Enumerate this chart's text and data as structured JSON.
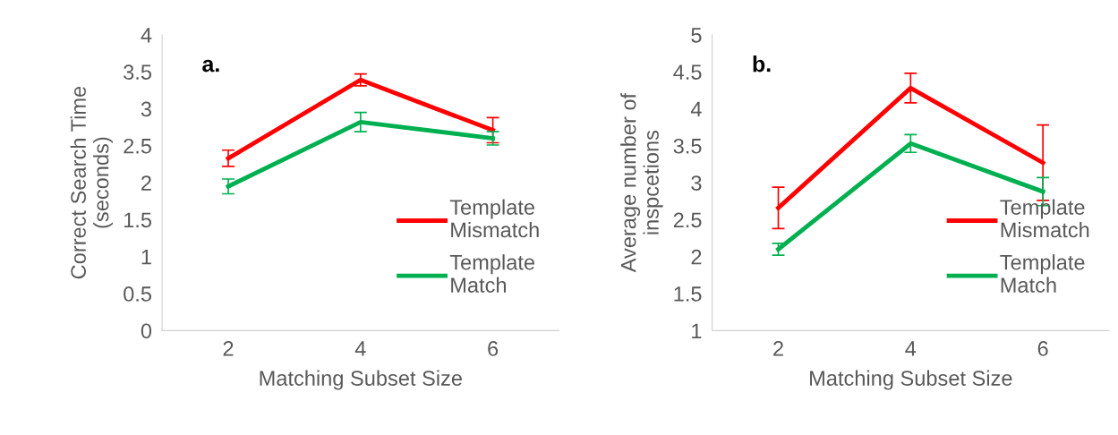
{
  "chart_data": [
    {
      "type": "line",
      "categories": [
        "2",
        "4",
        "6"
      ],
      "xlabel": "Matching Subset Size",
      "ylabel": "Correct Search Time\n(seconds)",
      "ylim": [
        0,
        4
      ],
      "yticks": [
        0,
        {
          "value": 0.5,
          "label": "0.5"
        },
        1,
        {
          "value": 1.5,
          "label": "1.5"
        },
        2,
        {
          "value": 2.5,
          "label": "2.5"
        },
        3,
        {
          "value": 3.5,
          "label": "3.5"
        },
        4
      ],
      "grid": false,
      "legend": "lower right",
      "marker": "none",
      "line_style": "solid",
      "annotations": [
        "a."
      ],
      "series": [
        {
          "name": "Template Mismatch",
          "color": "#ff0000",
          "values": [
            2.33,
            3.39,
            2.71
          ],
          "errors": [
            0.11,
            0.08,
            0.17
          ]
        },
        {
          "name": "Template Match",
          "color": "#00b050",
          "values": [
            1.95,
            2.82,
            2.6
          ],
          "errors": [
            0.1,
            0.13,
            0.09
          ]
        }
      ]
    },
    {
      "type": "line",
      "categories": [
        "2",
        "4",
        "6"
      ],
      "xlabel": "Matching Subset Size",
      "ylabel": "Average number of\ninspcetions",
      "ylim": [
        1,
        5
      ],
      "yticks": [
        1,
        {
          "value": 1.5,
          "label": "1.5"
        },
        2,
        {
          "value": 2.5,
          "label": "2.5"
        },
        3,
        {
          "value": 3.5,
          "label": "3.5"
        },
        4,
        {
          "value": 4.5,
          "label": "4.5"
        },
        5
      ],
      "grid": false,
      "legend": "lower right",
      "marker": "none",
      "line_style": "solid",
      "annotations": [
        "b."
      ],
      "series": [
        {
          "name": "Template Mismatch",
          "color": "#ff0000",
          "values": [
            2.66,
            4.28,
            3.27
          ],
          "errors": [
            0.28,
            0.2,
            0.51
          ]
        },
        {
          "name": "Template Match",
          "color": "#00b050",
          "values": [
            2.1,
            3.53,
            2.88
          ],
          "errors": [
            0.08,
            0.12,
            0.19
          ]
        }
      ]
    }
  ]
}
